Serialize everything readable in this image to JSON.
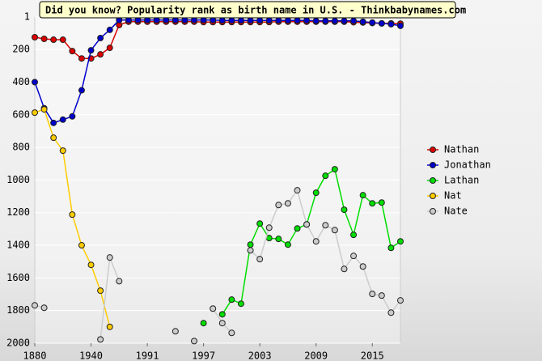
{
  "chart_data": {
    "type": "line",
    "title": "Did you know? Popularity rank as birth name in U.S. - Thinkbabynames.com",
    "categories": [
      "1880",
      null,
      null,
      null,
      null,
      null,
      "1940",
      null,
      null,
      null,
      null,
      null,
      "1991",
      null,
      null,
      null,
      null,
      null,
      "1997",
      null,
      null,
      null,
      null,
      null,
      "2003",
      null,
      null,
      null,
      null,
      null,
      "2009",
      null,
      null,
      null,
      null,
      null,
      "2015",
      null,
      null,
      null
    ],
    "ylim": [
      1,
      2000
    ],
    "y_inverted": true,
    "yticks": [
      1,
      200,
      400,
      600,
      800,
      1000,
      1200,
      1400,
      1600,
      1800,
      2000
    ],
    "grid": true,
    "legend": "right",
    "series": [
      {
        "name": "Nathan",
        "color": "#dd0000",
        "values": [
          125,
          135,
          140,
          140,
          210,
          255,
          255,
          230,
          190,
          50,
          30,
          30,
          30,
          30,
          30,
          30,
          30,
          30,
          32,
          32,
          32,
          32,
          32,
          32,
          32,
          32,
          30,
          30,
          30,
          30,
          30,
          30,
          30,
          30,
          33,
          35,
          38,
          40,
          40,
          42
        ]
      },
      {
        "name": "Jonathan",
        "color": "#0000cc",
        "values": [
          400,
          560,
          650,
          630,
          610,
          450,
          205,
          130,
          80,
          20,
          20,
          20,
          20,
          20,
          20,
          20,
          20,
          20,
          20,
          20,
          22,
          22,
          22,
          22,
          22,
          22,
          22,
          22,
          22,
          22,
          25,
          25,
          25,
          25,
          25,
          30,
          35,
          40,
          45,
          55
        ]
      },
      {
        "name": "Lathan",
        "color": "#00dd00",
        "values": [
          null,
          null,
          null,
          null,
          null,
          null,
          null,
          null,
          null,
          null,
          null,
          null,
          null,
          null,
          null,
          null,
          null,
          null,
          1877,
          null,
          1823,
          1733,
          1758,
          1396,
          1267,
          1356,
          1361,
          1396,
          1297,
          1272,
          1078,
          974,
          934,
          1182,
          1336,
          1093,
          1143,
          1138,
          1416,
          1376
        ]
      },
      {
        "name": "Nat",
        "color": "#ffcc00",
        "values": [
          587,
          567,
          741,
          820,
          1212,
          1400,
          1520,
          1678,
          1900,
          null,
          null,
          null,
          null,
          null,
          null,
          null,
          null,
          null,
          null,
          null,
          null,
          null,
          null,
          null,
          null,
          null,
          null,
          null,
          null,
          null,
          null,
          null,
          null,
          null,
          null,
          null,
          null,
          null,
          null,
          null
        ]
      },
      {
        "name": "Nate",
        "color": "#cccccc",
        "values": [
          1768,
          1783,
          null,
          null,
          null,
          null,
          null,
          1977,
          1475,
          1620,
          null,
          null,
          null,
          null,
          null,
          1927,
          null,
          1987,
          null,
          1788,
          1877,
          1937,
          null,
          1431,
          1485,
          1292,
          1153,
          1143,
          1063,
          1272,
          1376,
          1277,
          1307,
          1545,
          1465,
          1530,
          1698,
          1708,
          1813,
          1738
        ]
      }
    ]
  }
}
